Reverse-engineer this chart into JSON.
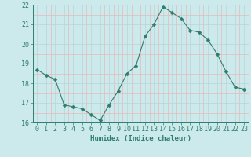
{
  "x": [
    0,
    1,
    2,
    3,
    4,
    5,
    6,
    7,
    8,
    9,
    10,
    11,
    12,
    13,
    14,
    15,
    16,
    17,
    18,
    19,
    20,
    21,
    22,
    23
  ],
  "y": [
    18.7,
    18.4,
    18.2,
    16.9,
    16.8,
    16.7,
    16.4,
    16.1,
    16.9,
    17.6,
    18.5,
    18.9,
    20.4,
    21.0,
    21.9,
    21.6,
    21.3,
    20.7,
    20.6,
    20.2,
    19.5,
    18.6,
    17.8,
    17.7
  ],
  "line_color": "#2e7d6e",
  "marker": "D",
  "marker_size": 2.5,
  "bg_color": "#cce9ec",
  "grid_major_color": "#b8d4d7",
  "grid_minor_color": "#e8b8b8",
  "xlabel": "Humidex (Indice chaleur)",
  "ylabel": "",
  "ylim": [
    16,
    22
  ],
  "xlim": [
    -0.5,
    23.5
  ],
  "yticks": [
    16,
    17,
    18,
    19,
    20,
    21,
    22
  ],
  "xticks": [
    0,
    1,
    2,
    3,
    4,
    5,
    6,
    7,
    8,
    9,
    10,
    11,
    12,
    13,
    14,
    15,
    16,
    17,
    18,
    19,
    20,
    21,
    22,
    23
  ],
  "label_fontsize": 6.5,
  "tick_fontsize": 6.0
}
